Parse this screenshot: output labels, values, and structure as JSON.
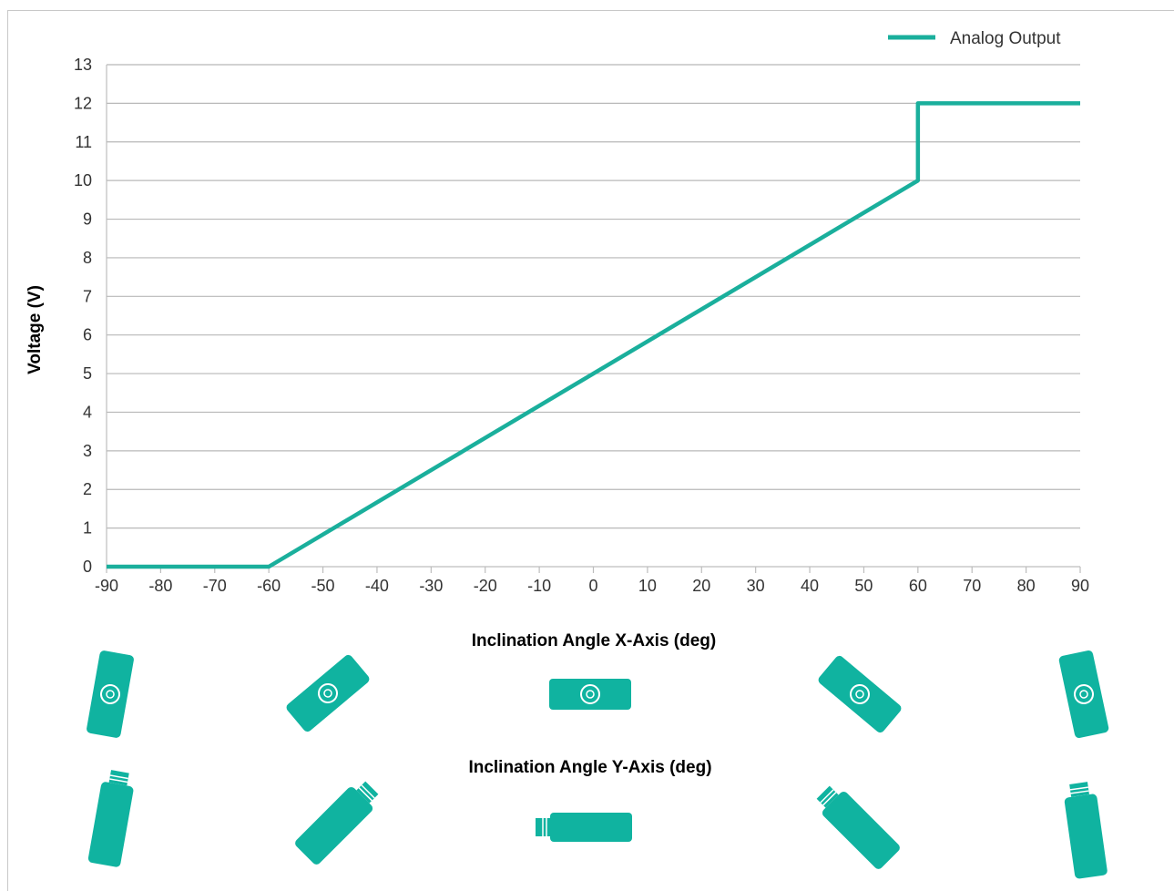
{
  "chart_data": {
    "type": "line",
    "title": "",
    "xlabel": "Inclination Angle X-Axis (deg)",
    "xlabel2": "Inclination Angle Y-Axis (deg)",
    "ylabel": "Voltage (V)",
    "xlim": [
      -90,
      90
    ],
    "ylim": [
      0,
      13
    ],
    "xticks": [
      -90,
      -80,
      -70,
      -60,
      -50,
      -40,
      -30,
      -20,
      -10,
      0,
      10,
      20,
      30,
      40,
      50,
      60,
      70,
      80,
      90
    ],
    "yticks": [
      0,
      1,
      2,
      3,
      4,
      5,
      6,
      7,
      8,
      9,
      10,
      11,
      12,
      13
    ],
    "grid": "horizontal",
    "legend_position": "top-right",
    "series": [
      {
        "name": "Analog Output",
        "color": "#1aaf9c",
        "x": [
          -90,
          -60,
          60,
          60,
          90
        ],
        "y": [
          0,
          0,
          10,
          12,
          12
        ]
      }
    ]
  },
  "orientation_icons": {
    "color": "#10b3a0",
    "x_axis_row": [
      "sensor-tilted-steep-left-icon",
      "sensor-tilted-45-left-icon",
      "sensor-level-icon",
      "sensor-tilted-45-right-icon",
      "sensor-tilted-steep-right-icon"
    ],
    "y_axis_row": [
      "sensor-steep-cable-down-icon",
      "sensor-45-cable-down-left-icon",
      "sensor-level-cable-left-icon",
      "sensor-45-cable-up-left-icon",
      "sensor-steep-cable-up-icon"
    ]
  }
}
